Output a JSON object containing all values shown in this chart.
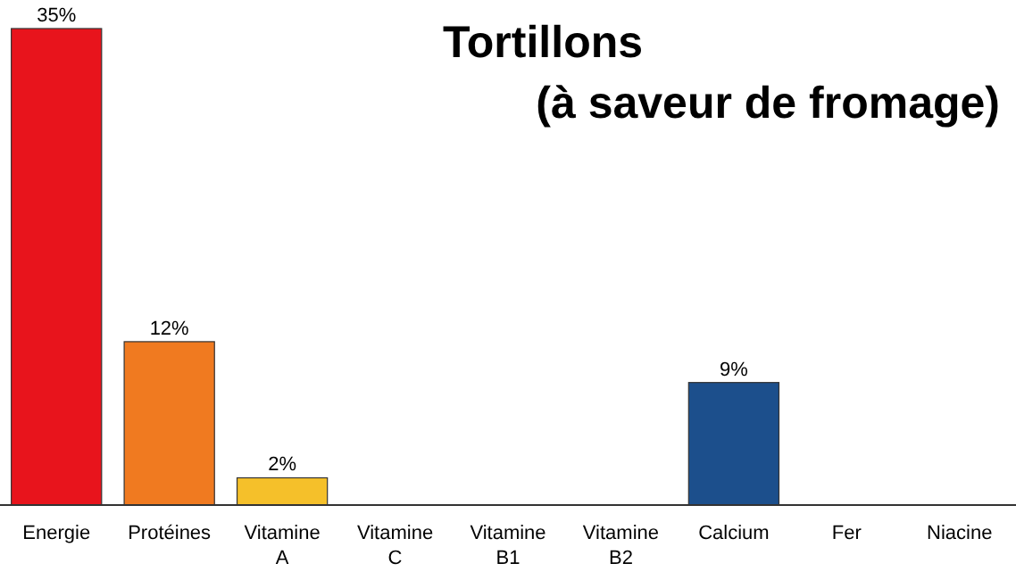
{
  "chart_data": {
    "type": "bar",
    "title": "Tortillons",
    "subtitle": "(à saveur de fromage)",
    "categories": [
      "Energie",
      "Protéines",
      "Vitamine A",
      "Vitamine C",
      "Vitamine B1",
      "Vitamine B2",
      "Calcium",
      "Fer",
      "Niacine"
    ],
    "values": [
      35,
      12,
      2,
      null,
      null,
      null,
      9,
      null,
      null
    ],
    "colors": [
      "#e8141c",
      "#f07a20",
      "#f5c02a",
      null,
      null,
      null,
      "#1c4f8c",
      null,
      null
    ],
    "value_labels": [
      "35%",
      "12%",
      "2%",
      null,
      null,
      null,
      "9%",
      null,
      null
    ]
  }
}
